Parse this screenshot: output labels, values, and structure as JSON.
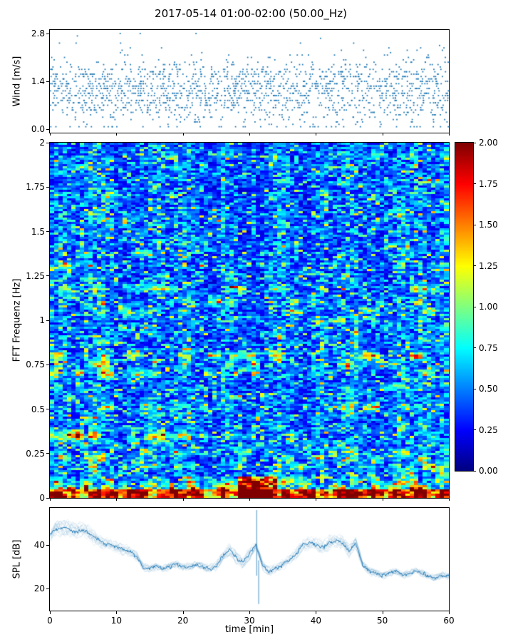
{
  "title": "2017-05-14 01:00-02:00 (50.00_Hz)",
  "chart_data": [
    {
      "id": "wind",
      "type": "scatter",
      "ylabel": "Wind [m/s]",
      "ylim": [
        0,
        2.8
      ],
      "yticks": [
        "0.0",
        "1.4",
        "2.8"
      ],
      "ytick_values": [
        0,
        1.4,
        2.8
      ],
      "xlim": [
        0,
        60
      ],
      "marker": "point",
      "color": "#1f77b4",
      "n_points": 1750,
      "mean": 1.12,
      "std": 0.46,
      "quantize_step": 0.07,
      "seed": 11
    },
    {
      "id": "spectrogram",
      "type": "heatmap",
      "ylabel": "FFT Frequenz [Hz]",
      "ylim": [
        0,
        2
      ],
      "yticks": [
        "0",
        "0.25",
        "0.5",
        "0.75",
        "1",
        "1.25",
        "1.5",
        "1.75",
        "2"
      ],
      "ytick_values": [
        0,
        0.25,
        0.5,
        0.75,
        1,
        1.25,
        1.5,
        1.75,
        2
      ],
      "xlim": [
        0,
        60
      ],
      "colormap": "jet",
      "clim": [
        0,
        2
      ],
      "colorbar_ticks": [
        "0.00",
        "0.25",
        "0.50",
        "0.75",
        "1.00",
        "1.25",
        "1.50",
        "1.75",
        "2.00"
      ],
      "colorbar_tick_values": [
        0,
        0.25,
        0.5,
        0.75,
        1,
        1.25,
        1.5,
        1.75,
        2
      ],
      "grid": {
        "cols": 93,
        "rows": 166
      },
      "seed": 5,
      "bands": [
        {
          "f": 0.02,
          "amp": 1.7,
          "w": 0.02,
          "p": 0.85
        },
        {
          "f": 0.055,
          "amp": 1.3,
          "w": 0.016,
          "p": 0.6
        },
        {
          "f": 0.09,
          "amp": 1.1,
          "w": 0.014,
          "p": 0.55
        },
        {
          "f": 0.13,
          "amp": 0.9,
          "w": 0.013,
          "p": 0.5
        },
        {
          "f": 0.175,
          "amp": 0.85,
          "w": 0.013,
          "p": 0.5
        },
        {
          "f": 0.22,
          "amp": 0.9,
          "w": 0.014,
          "p": 0.5
        },
        {
          "f": 0.26,
          "amp": 0.8,
          "w": 0.013,
          "p": 0.45
        },
        {
          "f": 0.3,
          "amp": 0.7,
          "w": 0.012,
          "p": 0.4
        },
        {
          "f": 0.35,
          "amp": 1.6,
          "w": 0.02,
          "p": 0.75,
          "t": [
            0,
            18
          ]
        },
        {
          "f": 0.35,
          "amp": 0.9,
          "w": 0.014,
          "p": 0.4,
          "t": [
            18,
            60
          ]
        },
        {
          "f": 0.4,
          "amp": 0.65,
          "w": 0.012,
          "p": 0.35
        },
        {
          "f": 0.455,
          "amp": 0.6,
          "w": 0.012,
          "p": 0.3
        },
        {
          "f": 0.51,
          "amp": 0.9,
          "w": 0.014,
          "p": 0.5
        },
        {
          "f": 0.565,
          "amp": 0.6,
          "w": 0.012,
          "p": 0.3
        },
        {
          "f": 0.62,
          "amp": 0.6,
          "w": 0.012,
          "p": 0.3
        },
        {
          "f": 0.7,
          "amp": 1.5,
          "w": 0.018,
          "p": 0.7,
          "t": [
            0,
            15
          ]
        },
        {
          "f": 0.7,
          "amp": 0.9,
          "w": 0.014,
          "p": 0.4,
          "t": [
            15,
            60
          ]
        },
        {
          "f": 0.75,
          "amp": 1.2,
          "w": 0.015,
          "p": 0.55
        },
        {
          "f": 0.8,
          "amp": 1.25,
          "w": 0.015,
          "p": 0.5
        },
        {
          "f": 0.875,
          "amp": 0.6,
          "w": 0.012,
          "p": 0.3
        },
        {
          "f": 0.95,
          "amp": 0.7,
          "w": 0.012,
          "p": 0.35
        },
        {
          "f": 1.0,
          "amp": 0.8,
          "w": 0.013,
          "p": 0.4
        },
        {
          "f": 1.05,
          "amp": 1.15,
          "w": 0.015,
          "p": 0.55,
          "t": [
            0,
            12
          ]
        },
        {
          "f": 1.05,
          "amp": 0.7,
          "w": 0.012,
          "p": 0.35,
          "t": [
            12,
            60
          ]
        },
        {
          "f": 1.1,
          "amp": 0.95,
          "w": 0.013,
          "p": 0.45
        },
        {
          "f": 1.18,
          "amp": 0.9,
          "w": 0.013,
          "p": 0.45
        },
        {
          "f": 1.25,
          "amp": 0.7,
          "w": 0.012,
          "p": 0.35
        },
        {
          "f": 1.31,
          "amp": 0.8,
          "w": 0.012,
          "p": 0.4
        },
        {
          "f": 1.38,
          "amp": 0.6,
          "w": 0.012,
          "p": 0.3
        },
        {
          "f": 1.43,
          "amp": 0.7,
          "w": 0.012,
          "p": 0.35
        },
        {
          "f": 1.5,
          "amp": 0.6,
          "w": 0.012,
          "p": 0.3
        },
        {
          "f": 1.56,
          "amp": 1.1,
          "w": 0.015,
          "p": 0.5,
          "t": [
            6,
            13
          ]
        },
        {
          "f": 1.56,
          "amp": 0.5,
          "w": 0.012,
          "p": 0.25,
          "t": [
            13,
            60
          ]
        },
        {
          "f": 1.63,
          "amp": 0.5,
          "w": 0.012,
          "p": 0.25
        },
        {
          "f": 1.7,
          "amp": 0.55,
          "w": 0.012,
          "p": 0.28
        },
        {
          "f": 1.78,
          "amp": 0.95,
          "w": 0.014,
          "p": 0.45,
          "t": [
            3,
            12
          ]
        },
        {
          "f": 1.78,
          "amp": 0.5,
          "w": 0.012,
          "p": 0.25,
          "t": [
            12,
            60
          ]
        },
        {
          "f": 1.86,
          "amp": 0.5,
          "w": 0.012,
          "p": 0.25
        },
        {
          "f": 1.93,
          "amp": 0.6,
          "w": 0.012,
          "p": 0.3
        }
      ],
      "hotspots": [
        {
          "t": [
            28.5,
            34
          ],
          "f": [
            0,
            0.12
          ],
          "amp": 1.3
        },
        {
          "t": [
            0,
            60
          ],
          "f": [
            0,
            0.045
          ],
          "amp": 0.7
        }
      ]
    },
    {
      "id": "spl",
      "type": "line",
      "ylabel": "SPL [dB]",
      "xlabel": "time [min]",
      "ylim": [
        10,
        57
      ],
      "yticks": [
        "20",
        "40"
      ],
      "ytick_values": [
        20,
        40
      ],
      "xticks": [
        "0",
        "10",
        "20",
        "30",
        "40",
        "50",
        "60"
      ],
      "xtick_values": [
        0,
        10,
        20,
        30,
        40,
        50,
        60
      ],
      "color": "#1f77b4",
      "seed": 9,
      "profile": [
        [
          0,
          45
        ],
        [
          1,
          47
        ],
        [
          2,
          48
        ],
        [
          3,
          47
        ],
        [
          4,
          46
        ],
        [
          5,
          47
        ],
        [
          6,
          45
        ],
        [
          7,
          43
        ],
        [
          8,
          41
        ],
        [
          9,
          40
        ],
        [
          10,
          39
        ],
        [
          11,
          38
        ],
        [
          12,
          37
        ],
        [
          13,
          35
        ],
        [
          14,
          30
        ],
        [
          15,
          29
        ],
        [
          16,
          30
        ],
        [
          17,
          29
        ],
        [
          18,
          30
        ],
        [
          19,
          31
        ],
        [
          20,
          30
        ],
        [
          21,
          30
        ],
        [
          22,
          31
        ],
        [
          23,
          30
        ],
        [
          24,
          29
        ],
        [
          25,
          30
        ],
        [
          26,
          35
        ],
        [
          27,
          38
        ],
        [
          28,
          34
        ],
        [
          29,
          32
        ],
        [
          30,
          36
        ],
        [
          31,
          40
        ],
        [
          32,
          30
        ],
        [
          33,
          28
        ],
        [
          34,
          29
        ],
        [
          35,
          31
        ],
        [
          36,
          33
        ],
        [
          37,
          36
        ],
        [
          38,
          40
        ],
        [
          39,
          41
        ],
        [
          40,
          40
        ],
        [
          41,
          39
        ],
        [
          42,
          41
        ],
        [
          43,
          42
        ],
        [
          44,
          41
        ],
        [
          45,
          37
        ],
        [
          46,
          41
        ],
        [
          47,
          31
        ],
        [
          48,
          28
        ],
        [
          49,
          27
        ],
        [
          50,
          26
        ],
        [
          51,
          27
        ],
        [
          52,
          28
        ],
        [
          53,
          26
        ],
        [
          54,
          27
        ],
        [
          55,
          28
        ],
        [
          56,
          27
        ],
        [
          57,
          26
        ],
        [
          58,
          25
        ],
        [
          59,
          26
        ],
        [
          60,
          26
        ]
      ],
      "envelope": [
        [
          0,
          4.5
        ],
        [
          5,
          4
        ],
        [
          8,
          3
        ],
        [
          12,
          2.5
        ],
        [
          15,
          1.5
        ],
        [
          20,
          1.5
        ],
        [
          25,
          2
        ],
        [
          27,
          3
        ],
        [
          30,
          3
        ],
        [
          33,
          2
        ],
        [
          36,
          2.5
        ],
        [
          38,
          3
        ],
        [
          42,
          3.5
        ],
        [
          45,
          3
        ],
        [
          47,
          2
        ],
        [
          50,
          1.5
        ],
        [
          55,
          1.5
        ],
        [
          60,
          1.5
        ]
      ],
      "spikes": [
        {
          "t": 31.1,
          "top": 56,
          "bottom": 26
        },
        {
          "t": 31.4,
          "top": 33,
          "bottom": 13
        }
      ]
    }
  ]
}
